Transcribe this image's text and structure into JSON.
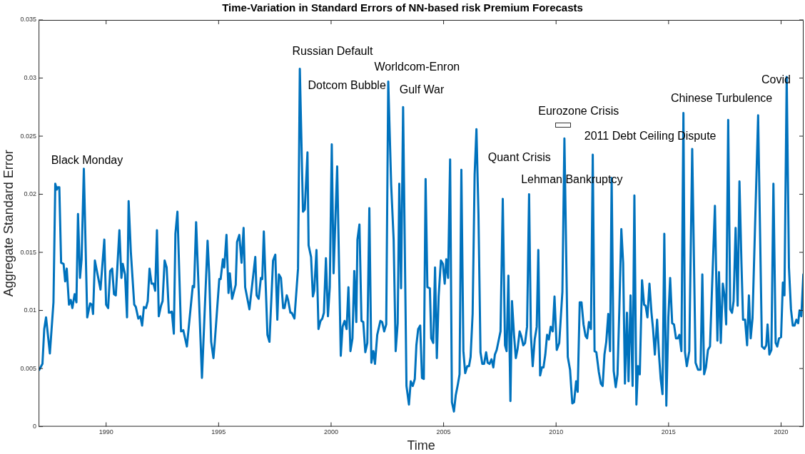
{
  "chart_data": {
    "type": "line",
    "title": "Time-Variation in Standard Errors of NN-based risk Premium Forecasts",
    "xlabel": "Time",
    "ylabel": "Aggregate Standard Error",
    "xlim": [
      1987,
      2021
    ],
    "xticks": [
      1990,
      1995,
      2000,
      2005,
      2010,
      2015,
      2020
    ],
    "ylim": [
      0,
      0.035
    ],
    "yticks": [
      0,
      0.005,
      0.01,
      0.015,
      0.02,
      0.025,
      0.03,
      0.035
    ],
    "grid": false,
    "legend": false,
    "marker": "none",
    "line_style": "solid",
    "annotations": [
      "Black Monday",
      "Russian Default",
      "Worldcom-Enron",
      "Dotcom Bubble",
      "Gulf War",
      "Eurozone Crisis",
      "2011 Debt Ceiling Dispute",
      "Quant Crisis",
      "Lehman Bankruptcy",
      "Chinese Turbulence",
      "Covid"
    ],
    "series": [
      {
        "color": "#0072bd",
        "x": [
          1987.03,
          1987.17,
          1987.25,
          1987.33,
          1987.5,
          1987.66,
          1987.74,
          1987.81,
          1987.85,
          1987.92,
          1988.0,
          1988.11,
          1988.18,
          1988.25,
          1988.35,
          1988.43,
          1988.5,
          1988.6,
          1988.68,
          1988.75,
          1988.84,
          1988.91,
          1989.01,
          1989.16,
          1989.29,
          1989.37,
          1989.42,
          1989.5,
          1989.63,
          1989.75,
          1989.92,
          1990.0,
          1990.09,
          1990.18,
          1990.27,
          1990.35,
          1990.43,
          1990.59,
          1990.68,
          1990.74,
          1990.84,
          1990.93,
          1991.0,
          1991.1,
          1991.25,
          1991.32,
          1991.43,
          1991.52,
          1991.6,
          1991.68,
          1991.77,
          1991.85,
          1991.93,
          1992.02,
          1992.11,
          1992.18,
          1992.26,
          1992.34,
          1992.44,
          1992.51,
          1992.6,
          1992.69,
          1992.79,
          1992.92,
          1993.01,
          1993.08,
          1993.17,
          1993.33,
          1993.43,
          1993.59,
          1993.85,
          1993.91,
          1994.0,
          1994.26,
          1994.51,
          1994.58,
          1994.67,
          1994.77,
          1994.83,
          1995.03,
          1995.09,
          1995.19,
          1995.25,
          1995.35,
          1995.44,
          1995.5,
          1995.6,
          1995.76,
          1995.82,
          1995.92,
          1996.02,
          1996.11,
          1996.18,
          1996.37,
          1996.63,
          1996.69,
          1996.78,
          1996.88,
          1996.94,
          1997.01,
          1997.17,
          1997.26,
          1997.42,
          1997.52,
          1997.61,
          1997.68,
          1997.77,
          1997.87,
          1997.93,
          1998.03,
          1998.09,
          1998.19,
          1998.25,
          1998.37,
          1998.53,
          1998.61,
          1998.75,
          1998.83,
          1998.95,
          1999.0,
          1999.11,
          1999.19,
          1999.25,
          1999.35,
          1999.44,
          1999.53,
          1999.61,
          1999.68,
          1999.77,
          1999.86,
          1999.94,
          2000.03,
          2000.11,
          2000.27,
          2000.43,
          2000.51,
          2000.6,
          2000.69,
          2000.77,
          2000.86,
          2000.95,
          2001.03,
          2001.12,
          2001.17,
          2001.26,
          2001.35,
          2001.43,
          2001.52,
          2001.61,
          2001.7,
          2001.79,
          2001.88,
          2001.95,
          2002.05,
          2002.19,
          2002.27,
          2002.36,
          2002.45,
          2002.54,
          2002.67,
          2002.78,
          2002.87,
          2002.96,
          2003.03,
          2003.11,
          2003.2,
          2003.35,
          2003.46,
          2003.54,
          2003.63,
          2003.72,
          2003.79,
          2003.87,
          2003.96,
          2004.04,
          2004.12,
          2004.2,
          2004.28,
          2004.39,
          2004.45,
          2004.54,
          2004.62,
          2004.7,
          2004.78,
          2004.88,
          2004.97,
          2005.05,
          2005.12,
          2005.2,
          2005.29,
          2005.37,
          2005.46,
          2005.54,
          2005.63,
          2005.71,
          2005.79,
          2005.88,
          2005.96,
          2006.05,
          2006.13,
          2006.2,
          2006.29,
          2006.38,
          2006.46,
          2006.55,
          2006.64,
          2006.72,
          2006.8,
          2006.89,
          2006.96,
          2007.04,
          2007.13,
          2007.21,
          2007.28,
          2007.36,
          2007.53,
          2007.63,
          2007.73,
          2007.8,
          2007.88,
          2007.97,
          2008.04,
          2008.13,
          2008.21,
          2008.29,
          2008.38,
          2008.45,
          2008.54,
          2008.62,
          2008.71,
          2008.8,
          2008.88,
          2008.96,
          2009.05,
          2009.14,
          2009.21,
          2009.29,
          2009.37,
          2009.44,
          2009.52,
          2009.6,
          2009.68,
          2009.76,
          2009.85,
          2009.93,
          2010.03,
          2010.14,
          2010.28,
          2010.37,
          2010.52,
          2010.62,
          2010.72,
          2010.8,
          2010.89,
          2010.96,
          2011.05,
          2011.13,
          2011.22,
          2011.31,
          2011.38,
          2011.46,
          2011.55,
          2011.63,
          2011.71,
          2011.79,
          2011.9,
          2011.99,
          2012.07,
          2012.15,
          2012.23,
          2012.32,
          2012.4,
          2012.47,
          2012.56,
          2012.65,
          2012.73,
          2012.81,
          2012.9,
          2012.98,
          2013.06,
          2013.15,
          2013.22,
          2013.31,
          2013.4,
          2013.48,
          2013.57,
          2013.64,
          2013.72,
          2013.82,
          2013.91,
          2013.98,
          2014.06,
          2014.15,
          2014.24,
          2014.31,
          2014.39,
          2014.49,
          2014.58,
          2014.65,
          2014.73,
          2014.81,
          2014.9,
          2014.99,
          2015.07,
          2015.16,
          2015.24,
          2015.33,
          2015.41,
          2015.48,
          2015.57,
          2015.66,
          2015.73,
          2015.81,
          2015.92,
          2016.05,
          2016.2,
          2016.31,
          2016.42,
          2016.5,
          2016.58,
          2016.66,
          2016.75,
          2016.84,
          2017.06,
          2017.17,
          2017.24,
          2017.32,
          2017.41,
          2017.49,
          2017.56,
          2017.65,
          2017.74,
          2017.82,
          2017.89,
          2017.98,
          2018.07,
          2018.15,
          2018.24,
          2018.31,
          2018.4,
          2018.49,
          2018.57,
          2018.65,
          2018.73,
          2018.84,
          2018.98,
          2019.15,
          2019.26,
          2019.34,
          2019.4,
          2019.48,
          2019.57,
          2019.66,
          2019.76,
          2019.83,
          2019.91,
          2020.0,
          2020.08,
          2020.15,
          2020.25,
          2020.35,
          2020.44,
          2020.52,
          2020.6,
          2020.68,
          2020.76,
          2020.82,
          2020.9,
          2020.99
        ],
        "values": [
          0.0049,
          0.0054,
          0.0084,
          0.0094,
          0.0063,
          0.0107,
          0.0209,
          0.0204,
          0.0206,
          0.0206,
          0.0141,
          0.014,
          0.0125,
          0.0136,
          0.0105,
          0.0109,
          0.0102,
          0.0114,
          0.0107,
          0.0183,
          0.0128,
          0.0144,
          0.0222,
          0.0094,
          0.0106,
          0.0105,
          0.0097,
          0.0143,
          0.013,
          0.0118,
          0.0161,
          0.0105,
          0.0102,
          0.0134,
          0.0136,
          0.0114,
          0.0113,
          0.0169,
          0.0128,
          0.014,
          0.0131,
          0.0094,
          0.0194,
          0.015,
          0.0105,
          0.0103,
          0.0093,
          0.0095,
          0.0087,
          0.0103,
          0.0102,
          0.0108,
          0.0136,
          0.0123,
          0.0123,
          0.0117,
          0.0169,
          0.0095,
          0.0104,
          0.0108,
          0.0143,
          0.0137,
          0.0098,
          0.0099,
          0.008,
          0.0166,
          0.0185,
          0.0082,
          0.0083,
          0.0069,
          0.0121,
          0.012,
          0.0176,
          0.0042,
          0.016,
          0.0132,
          0.0073,
          0.0059,
          0.0073,
          0.0127,
          0.0127,
          0.0144,
          0.0137,
          0.0165,
          0.0115,
          0.0132,
          0.011,
          0.0122,
          0.0159,
          0.0165,
          0.0141,
          0.0171,
          0.012,
          0.0101,
          0.0146,
          0.0113,
          0.011,
          0.0128,
          0.0127,
          0.0168,
          0.0079,
          0.0073,
          0.0143,
          0.0148,
          0.0092,
          0.0131,
          0.0128,
          0.0102,
          0.0102,
          0.0113,
          0.0109,
          0.0098,
          0.0098,
          0.0093,
          0.0136,
          0.0308,
          0.0185,
          0.0187,
          0.0236,
          0.0156,
          0.0146,
          0.0112,
          0.0117,
          0.0152,
          0.0084,
          0.0091,
          0.0093,
          0.0098,
          0.0145,
          0.0095,
          0.012,
          0.0243,
          0.0132,
          0.0224,
          0.0061,
          0.0086,
          0.0091,
          0.0084,
          0.012,
          0.0065,
          0.0076,
          0.0134,
          0.009,
          0.0161,
          0.0174,
          0.0091,
          0.009,
          0.0064,
          0.0072,
          0.0188,
          0.0055,
          0.0065,
          0.0054,
          0.0079,
          0.0091,
          0.009,
          0.0082,
          0.0088,
          0.0297,
          0.0208,
          0.0161,
          0.0065,
          0.0089,
          0.0209,
          0.0119,
          0.0275,
          0.0035,
          0.0019,
          0.0039,
          0.0035,
          0.0041,
          0.007,
          0.0084,
          0.0087,
          0.0042,
          0.0041,
          0.0213,
          0.012,
          0.0119,
          0.0076,
          0.0072,
          0.0137,
          0.0059,
          0.0112,
          0.0143,
          0.014,
          0.0123,
          0.0144,
          0.0128,
          0.023,
          0.0021,
          0.0013,
          0.0027,
          0.0036,
          0.0045,
          0.0221,
          0.0065,
          0.0046,
          0.0052,
          0.0052,
          0.006,
          0.0097,
          0.0217,
          0.0256,
          0.0183,
          0.0064,
          0.0054,
          0.0054,
          0.0064,
          0.0055,
          0.0054,
          0.0058,
          0.0051,
          0.0062,
          0.0066,
          0.0082,
          0.0196,
          0.007,
          0.0065,
          0.013,
          0.0022,
          0.0108,
          0.0079,
          0.0059,
          0.0067,
          0.0082,
          0.0078,
          0.007,
          0.0072,
          0.0086,
          0.02,
          0.0079,
          0.0052,
          0.0075,
          0.0086,
          0.0152,
          0.0044,
          0.0051,
          0.0051,
          0.0062,
          0.0079,
          0.0075,
          0.0086,
          0.0082,
          0.0112,
          0.0066,
          0.0072,
          0.0116,
          0.0248,
          0.006,
          0.0049,
          0.002,
          0.0021,
          0.0039,
          0.003,
          0.0107,
          0.0107,
          0.0088,
          0.0078,
          0.0076,
          0.009,
          0.0084,
          0.0234,
          0.0065,
          0.0064,
          0.0047,
          0.0037,
          0.0035,
          0.0062,
          0.0073,
          0.0097,
          0.0065,
          0.0214,
          0.0048,
          0.0034,
          0.0045,
          0.01,
          0.017,
          0.0141,
          0.0037,
          0.0098,
          0.0039,
          0.0113,
          0.0035,
          0.0199,
          0.0019,
          0.0052,
          0.0045,
          0.0126,
          0.0105,
          0.0104,
          0.0094,
          0.0123,
          0.0098,
          0.0084,
          0.0062,
          0.0092,
          0.006,
          0.0041,
          0.0028,
          0.0166,
          0.0018,
          0.0094,
          0.0128,
          0.0089,
          0.0088,
          0.0076,
          0.0076,
          0.0079,
          0.0065,
          0.027,
          0.0064,
          0.0052,
          0.0065,
          0.0239,
          0.0055,
          0.0049,
          0.0049,
          0.0131,
          0.0045,
          0.0051,
          0.0066,
          0.0069,
          0.019,
          0.0074,
          0.0133,
          0.0072,
          0.0123,
          0.0112,
          0.0088,
          0.0264,
          0.0101,
          0.0098,
          0.0108,
          0.0171,
          0.0104,
          0.0211,
          0.014,
          0.0092,
          0.0092,
          0.007,
          0.0113,
          0.0076,
          0.0093,
          0.017,
          0.0268,
          0.0069,
          0.0067,
          0.007,
          0.0088,
          0.0062,
          0.0066,
          0.0209,
          0.0072,
          0.0069,
          0.0076,
          0.0077,
          0.0124,
          0.0113,
          0.0301,
          0.0137,
          0.0101,
          0.0087,
          0.0087,
          0.0092,
          0.0089,
          0.01,
          0.0095,
          0.0131
        ]
      }
    ]
  }
}
